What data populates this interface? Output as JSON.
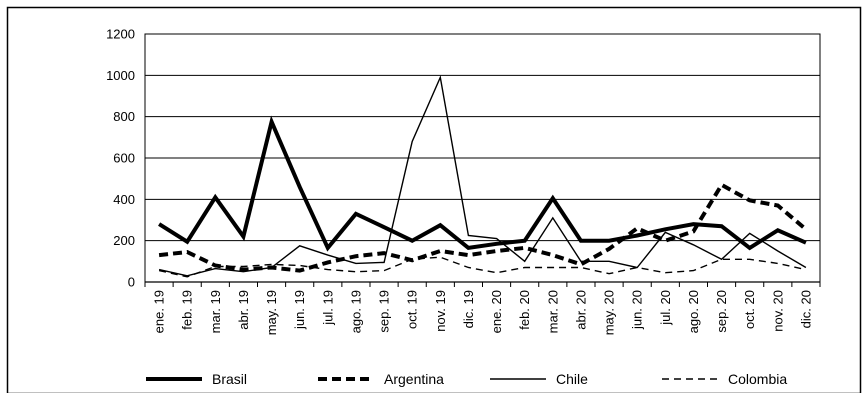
{
  "chart_data": {
    "type": "line",
    "title": "",
    "xlabel": "",
    "ylabel": "",
    "ylim": [
      0,
      1200
    ],
    "yticks": [
      0,
      200,
      400,
      600,
      800,
      1000,
      1200
    ],
    "grid": "horizontal",
    "legend_position": "bottom",
    "categories": [
      "ene. 19",
      "feb. 19",
      "mar. 19",
      "abr. 19",
      "may. 19",
      "jun. 19",
      "jul. 19",
      "ago. 19",
      "sep. 19",
      "oct. 19",
      "nov. 19",
      "dic. 19",
      "ene. 20",
      "feb. 20",
      "mar. 20",
      "abr. 20",
      "may. 20",
      "jun. 20",
      "jul. 20",
      "ago. 20",
      "sep. 20",
      "oct. 20",
      "nov. 20",
      "dic. 20"
    ],
    "series": [
      {
        "name": "Brasil",
        "style": "thick-solid",
        "color": "#000000",
        "values": [
          280,
          195,
          410,
          220,
          775,
          460,
          165,
          330,
          265,
          200,
          275,
          165,
          185,
          200,
          405,
          200,
          200,
          225,
          255,
          280,
          270,
          165,
          250,
          190
        ]
      },
      {
        "name": "Argentina",
        "style": "thick-dashed",
        "color": "#000000",
        "values": [
          130,
          145,
          80,
          60,
          70,
          55,
          95,
          125,
          140,
          105,
          150,
          130,
          150,
          165,
          130,
          85,
          160,
          260,
          200,
          245,
          470,
          395,
          370,
          255
        ]
      },
      {
        "name": "Chile",
        "style": "thin-solid",
        "color": "#000000",
        "values": [
          60,
          30,
          65,
          50,
          70,
          175,
          130,
          90,
          95,
          680,
          990,
          225,
          210,
          100,
          310,
          100,
          100,
          70,
          240,
          180,
          110,
          235,
          150,
          70
        ]
      },
      {
        "name": "Colombia",
        "style": "thin-dashed",
        "color": "#000000",
        "values": [
          55,
          25,
          75,
          75,
          85,
          80,
          60,
          50,
          55,
          110,
          120,
          70,
          45,
          70,
          70,
          70,
          40,
          70,
          45,
          55,
          110,
          110,
          90,
          60
        ]
      }
    ]
  }
}
